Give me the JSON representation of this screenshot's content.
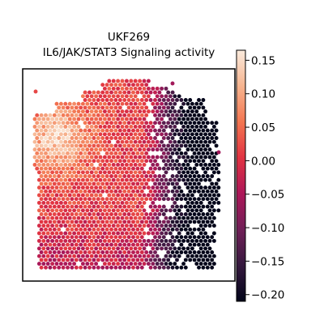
{
  "chart_data": {
    "type": "heatmap",
    "title": "UKF269",
    "subtitle": "IL6/JAK/STAT3 Signaling activity",
    "xlabel": "",
    "ylabel": "",
    "colorbar": {
      "min": -0.21,
      "max": 0.165,
      "ticks": [
        {
          "value": 0.15,
          "label": "0.15"
        },
        {
          "value": 0.1,
          "label": "0.10"
        },
        {
          "value": 0.05,
          "label": "0.05"
        },
        {
          "value": 0.0,
          "label": "0.00"
        },
        {
          "value": -0.05,
          "label": "−0.05"
        },
        {
          "value": -0.1,
          "label": "−0.10"
        },
        {
          "value": -0.15,
          "label": "−0.15"
        },
        {
          "value": -0.2,
          "label": "−0.20"
        }
      ],
      "colormap": "rocket",
      "colormap_stops": [
        "#03051a",
        "#35193e",
        "#701f57",
        "#ad1759",
        "#e13342",
        "#f37651",
        "#f6b48f",
        "#faebdd"
      ]
    },
    "grid": false,
    "legend": "colorbar-right"
  }
}
